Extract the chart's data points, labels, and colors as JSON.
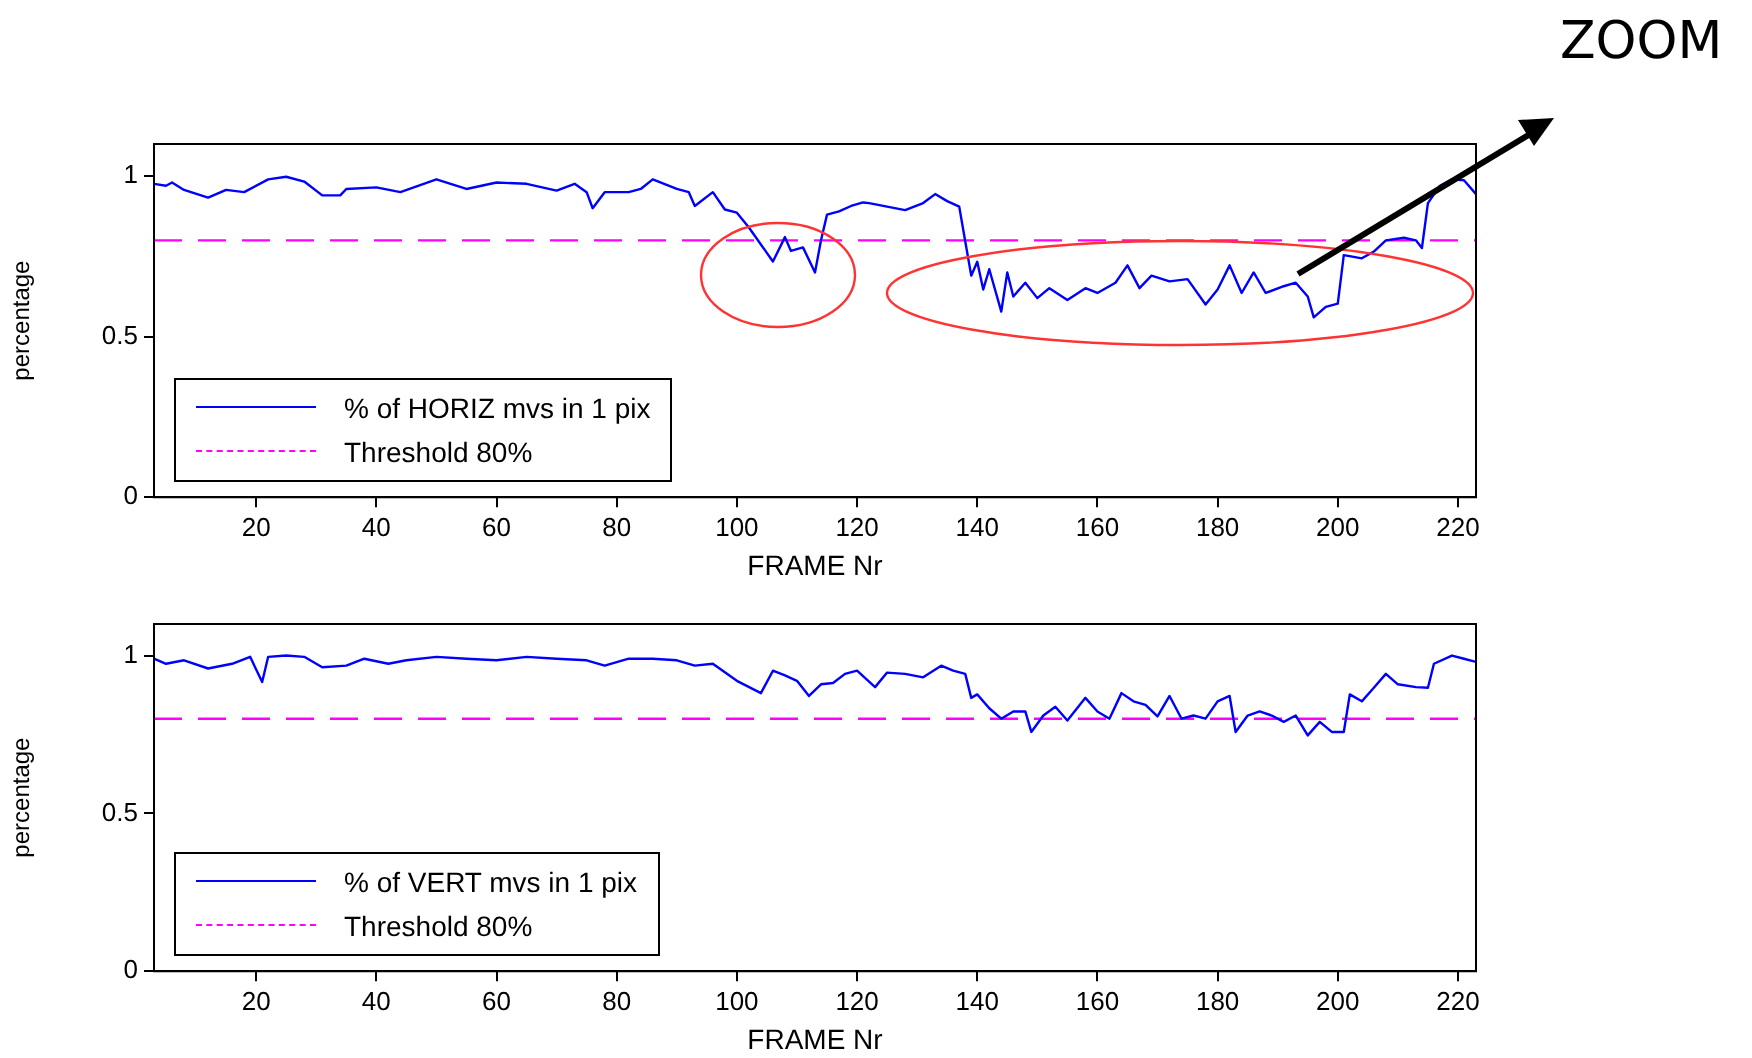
{
  "chart_data": [
    {
      "type": "line",
      "xlabel": "FRAME Nr",
      "ylabel": "percentage",
      "xlim": [
        3,
        223
      ],
      "ylim": [
        0,
        1.1
      ],
      "xticks": [
        20,
        40,
        60,
        80,
        100,
        120,
        140,
        160,
        180,
        200,
        220
      ],
      "yticks": [
        0,
        0.5,
        1
      ],
      "grid": false,
      "legend": "bottom left",
      "marker": "none",
      "annotations": [
        "ZOOM"
      ],
      "series": [
        {
          "name": "% of HORIZ mvs in 1 pix",
          "color": "#0000ff",
          "line_style": "solid",
          "x": [
            3,
            5,
            6,
            8,
            12,
            15,
            18,
            22,
            25,
            28,
            31,
            34,
            35,
            40,
            44,
            50,
            55,
            60,
            65,
            70,
            73,
            75,
            76,
            78,
            82,
            84,
            86,
            90,
            92,
            93,
            96,
            98,
            100,
            102,
            106,
            108,
            109,
            111,
            113,
            114,
            115,
            117,
            119,
            121,
            122,
            125,
            128,
            131,
            133,
            135,
            137,
            138,
            139,
            140,
            141,
            142,
            144,
            145,
            146,
            148,
            150,
            152,
            155,
            158,
            160,
            163,
            165,
            167,
            169,
            172,
            175,
            178,
            180,
            182,
            184,
            186,
            188,
            191,
            193,
            195,
            196,
            198,
            200,
            201,
            204,
            206,
            208,
            211,
            213,
            214,
            215,
            217,
            219,
            221,
            223
          ],
          "values": [
            0.976,
            0.97,
            0.98,
            0.957,
            0.933,
            0.957,
            0.95,
            0.99,
            0.998,
            0.983,
            0.94,
            0.94,
            0.96,
            0.965,
            0.95,
            0.99,
            0.96,
            0.98,
            0.976,
            0.955,
            0.976,
            0.95,
            0.9,
            0.95,
            0.95,
            0.96,
            0.99,
            0.96,
            0.95,
            0.907,
            0.95,
            0.896,
            0.886,
            0.84,
            0.734,
            0.81,
            0.767,
            0.778,
            0.7,
            0.8,
            0.88,
            0.89,
            0.907,
            0.918,
            0.916,
            0.905,
            0.894,
            0.916,
            0.944,
            0.922,
            0.905,
            0.797,
            0.69,
            0.733,
            0.647,
            0.71,
            0.578,
            0.7,
            0.625,
            0.668,
            0.62,
            0.651,
            0.614,
            0.651,
            0.636,
            0.668,
            0.722,
            0.651,
            0.69,
            0.672,
            0.679,
            0.6,
            0.647,
            0.722,
            0.636,
            0.7,
            0.636,
            0.657,
            0.668,
            0.625,
            0.56,
            0.593,
            0.603,
            0.754,
            0.744,
            0.765,
            0.8,
            0.808,
            0.8,
            0.776,
            0.916,
            0.97,
            0.99,
            0.987,
            0.944
          ]
        },
        {
          "name": "Threshold 80%",
          "color": "#ff00ff",
          "line_style": "dashed",
          "x": [
            3,
            223
          ],
          "values": [
            0.8,
            0.8
          ]
        }
      ]
    },
    {
      "type": "line",
      "xlabel": "FRAME Nr",
      "ylabel": "percentage",
      "xlim": [
        3,
        223
      ],
      "ylim": [
        0,
        1.1
      ],
      "xticks": [
        20,
        40,
        60,
        80,
        100,
        120,
        140,
        160,
        180,
        200,
        220
      ],
      "yticks": [
        0,
        0.5,
        1
      ],
      "grid": false,
      "legend": "bottom left",
      "marker": "none",
      "series": [
        {
          "name": "% of VERT mvs in 1 pix",
          "color": "#0000ff",
          "line_style": "solid",
          "x": [
            3,
            5,
            8,
            12,
            16,
            19,
            21,
            22,
            25,
            28,
            31,
            35,
            38,
            42,
            45,
            50,
            55,
            60,
            65,
            70,
            75,
            78,
            82,
            86,
            90,
            93,
            96,
            100,
            104,
            106,
            108,
            110,
            112,
            114,
            116,
            118,
            120,
            123,
            125,
            128,
            131,
            134,
            136,
            138,
            139,
            140,
            142,
            144,
            146,
            148,
            149,
            151,
            153,
            155,
            158,
            160,
            162,
            164,
            166,
            168,
            170,
            172,
            174,
            176,
            178,
            180,
            182,
            183,
            185,
            187,
            189,
            191,
            193,
            195,
            197,
            199,
            201,
            202,
            204,
            206,
            208,
            210,
            213,
            215,
            216,
            219,
            221,
            223
          ],
          "values": [
            0.99,
            0.974,
            0.985,
            0.959,
            0.974,
            0.996,
            0.916,
            0.996,
            1.0,
            0.996,
            0.963,
            0.968,
            0.99,
            0.974,
            0.985,
            0.996,
            0.99,
            0.985,
            0.996,
            0.99,
            0.985,
            0.968,
            0.99,
            0.99,
            0.985,
            0.968,
            0.974,
            0.92,
            0.881,
            0.952,
            0.937,
            0.92,
            0.872,
            0.909,
            0.913,
            0.942,
            0.952,
            0.9,
            0.946,
            0.942,
            0.931,
            0.968,
            0.952,
            0.942,
            0.866,
            0.877,
            0.833,
            0.8,
            0.823,
            0.823,
            0.758,
            0.81,
            0.838,
            0.794,
            0.866,
            0.823,
            0.8,
            0.881,
            0.855,
            0.844,
            0.807,
            0.872,
            0.8,
            0.81,
            0.8,
            0.855,
            0.872,
            0.758,
            0.81,
            0.823,
            0.81,
            0.79,
            0.81,
            0.747,
            0.79,
            0.758,
            0.758,
            0.877,
            0.855,
            0.898,
            0.942,
            0.909,
            0.9,
            0.898,
            0.974,
            1.0,
            0.99,
            0.98
          ]
        },
        {
          "name": "Threshold 80%",
          "color": "#ff00ff",
          "line_style": "dashed",
          "x": [
            3,
            223
          ],
          "values": [
            0.8,
            0.8
          ]
        }
      ]
    }
  ]
}
